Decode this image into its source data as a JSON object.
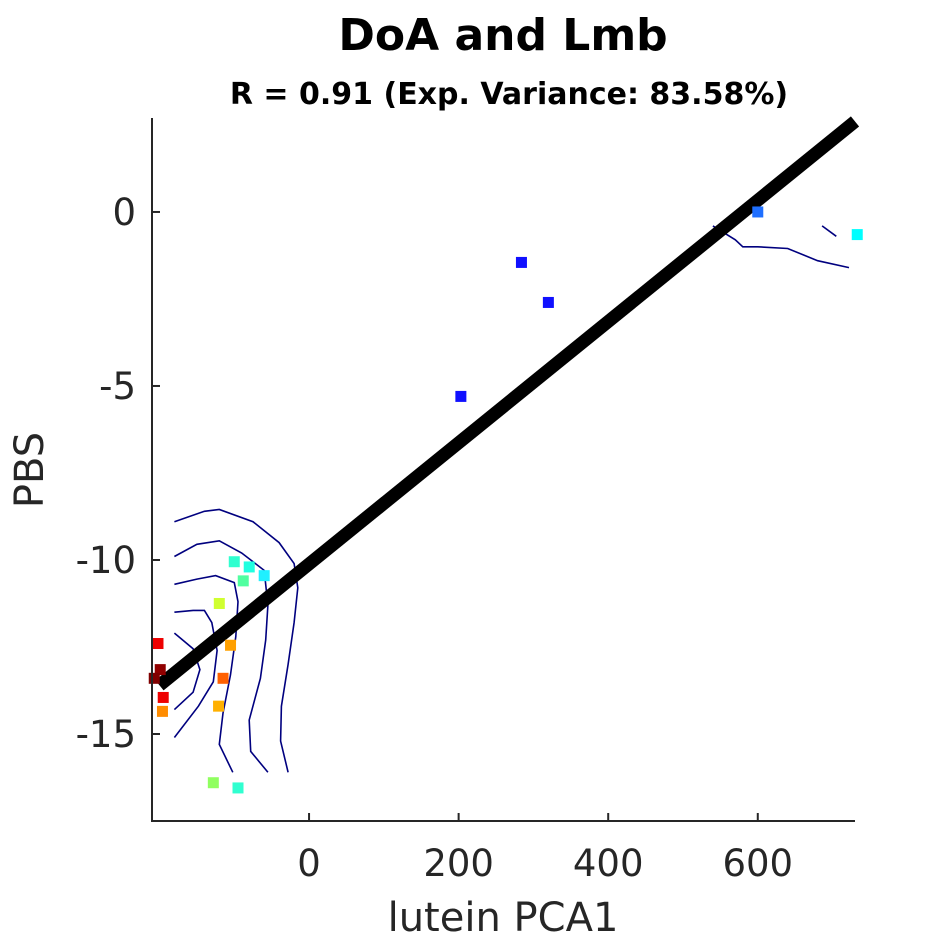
{
  "chart_data": {
    "type": "scatter",
    "title": "DoA and Lmb",
    "subtitle": "R = 0.91 (Exp. Variance: 83.58%)",
    "xlabel": "lutein PCA1",
    "ylabel": "PBS",
    "xlim": [
      -210,
      730
    ],
    "ylim": [
      -17.5,
      2.7
    ],
    "xticks": [
      {
        "value": 0,
        "label": "0"
      },
      {
        "value": 200,
        "label": "200"
      },
      {
        "value": 400,
        "label": "400"
      },
      {
        "value": 600,
        "label": "600"
      }
    ],
    "yticks": [
      {
        "value": 0,
        "label": "0"
      },
      {
        "value": -5,
        "label": "-5"
      },
      {
        "value": -10,
        "label": "-10"
      },
      {
        "value": -15,
        "label": "-15"
      }
    ],
    "grid": false,
    "fit_line": {
      "x": [
        -200,
        730
      ],
      "y": [
        -13.6,
        2.6
      ],
      "color": "#000000"
    },
    "points": [
      {
        "x": 600,
        "y": 0.0,
        "color": "#1f6fff"
      },
      {
        "x": 733,
        "y": -0.65,
        "color": "#00ffff"
      },
      {
        "x": 284,
        "y": -1.45,
        "color": "#1010ff"
      },
      {
        "x": 320,
        "y": -2.6,
        "color": "#1010ff"
      },
      {
        "x": 203,
        "y": -5.3,
        "color": "#1010ff"
      },
      {
        "x": -100,
        "y": -10.05,
        "color": "#30ffd0"
      },
      {
        "x": -80,
        "y": -10.2,
        "color": "#20ffe0"
      },
      {
        "x": -60,
        "y": -10.45,
        "color": "#20f0ff"
      },
      {
        "x": -88,
        "y": -10.6,
        "color": "#50ffa0"
      },
      {
        "x": -120,
        "y": -11.25,
        "color": "#d0ff30"
      },
      {
        "x": -105,
        "y": -12.45,
        "color": "#ffa000"
      },
      {
        "x": -202,
        "y": -12.4,
        "color": "#ee0000"
      },
      {
        "x": -199,
        "y": -13.15,
        "color": "#900000"
      },
      {
        "x": -207,
        "y": -13.4,
        "color": "#800000"
      },
      {
        "x": -115,
        "y": -13.4,
        "color": "#ff6000"
      },
      {
        "x": -195,
        "y": -13.95,
        "color": "#ee0000"
      },
      {
        "x": -196,
        "y": -14.35,
        "color": "#ff8c00"
      },
      {
        "x": -121,
        "y": -14.2,
        "color": "#ffb000"
      },
      {
        "x": -128,
        "y": -16.4,
        "color": "#90ff60"
      },
      {
        "x": -95,
        "y": -16.55,
        "color": "#30ffd0"
      }
    ],
    "contour_color": "#00007f",
    "contours": [
      [
        [
          -180,
          -8.9
        ],
        [
          -140,
          -8.6
        ],
        [
          -120,
          -8.55
        ],
        [
          -75,
          -8.9
        ],
        [
          -40,
          -9.5
        ],
        [
          -20,
          -10.1
        ],
        [
          -15,
          -10.8
        ],
        [
          -20,
          -11.8
        ],
        [
          -28,
          -13.0
        ],
        [
          -37,
          -14.2
        ],
        [
          -38,
          -15.2
        ],
        [
          -28,
          -16.1
        ]
      ],
      [
        [
          -180,
          -9.9
        ],
        [
          -150,
          -9.55
        ],
        [
          -120,
          -9.45
        ],
        [
          -90,
          -9.8
        ],
        [
          -60,
          -10.3
        ],
        [
          -55,
          -11.3
        ],
        [
          -58,
          -12.3
        ],
        [
          -65,
          -13.4
        ],
        [
          -80,
          -14.6
        ],
        [
          -78,
          -15.5
        ],
        [
          -55,
          -16.1
        ]
      ],
      [
        [
          -180,
          -10.7
        ],
        [
          -150,
          -10.55
        ],
        [
          -125,
          -10.45
        ],
        [
          -100,
          -10.65
        ],
        [
          -95,
          -11.2
        ],
        [
          -98,
          -12.2
        ],
        [
          -105,
          -13.3
        ],
        [
          -115,
          -14.4
        ],
        [
          -120,
          -15.3
        ],
        [
          -102,
          -16.1
        ]
      ],
      [
        [
          -180,
          -11.5
        ],
        [
          -155,
          -11.45
        ],
        [
          -140,
          -11.45
        ],
        [
          -130,
          -11.8
        ],
        [
          -123,
          -12.6
        ],
        [
          -128,
          -13.5
        ],
        [
          -148,
          -14.2
        ],
        [
          -180,
          -15.1
        ]
      ],
      [
        [
          -180,
          -12.1
        ],
        [
          -155,
          -12.55
        ],
        [
          -146,
          -13.15
        ],
        [
          -155,
          -13.8
        ],
        [
          -180,
          -14.3
        ]
      ],
      [
        [
          540,
          -0.4
        ],
        [
          570,
          -0.8
        ],
        [
          580,
          -1.0
        ],
        [
          600,
          -1.0
        ],
        [
          640,
          -1.05
        ],
        [
          680,
          -1.4
        ],
        [
          722,
          -1.6
        ]
      ],
      [
        [
          686,
          -0.4
        ],
        [
          705,
          -0.7
        ]
      ]
    ]
  }
}
